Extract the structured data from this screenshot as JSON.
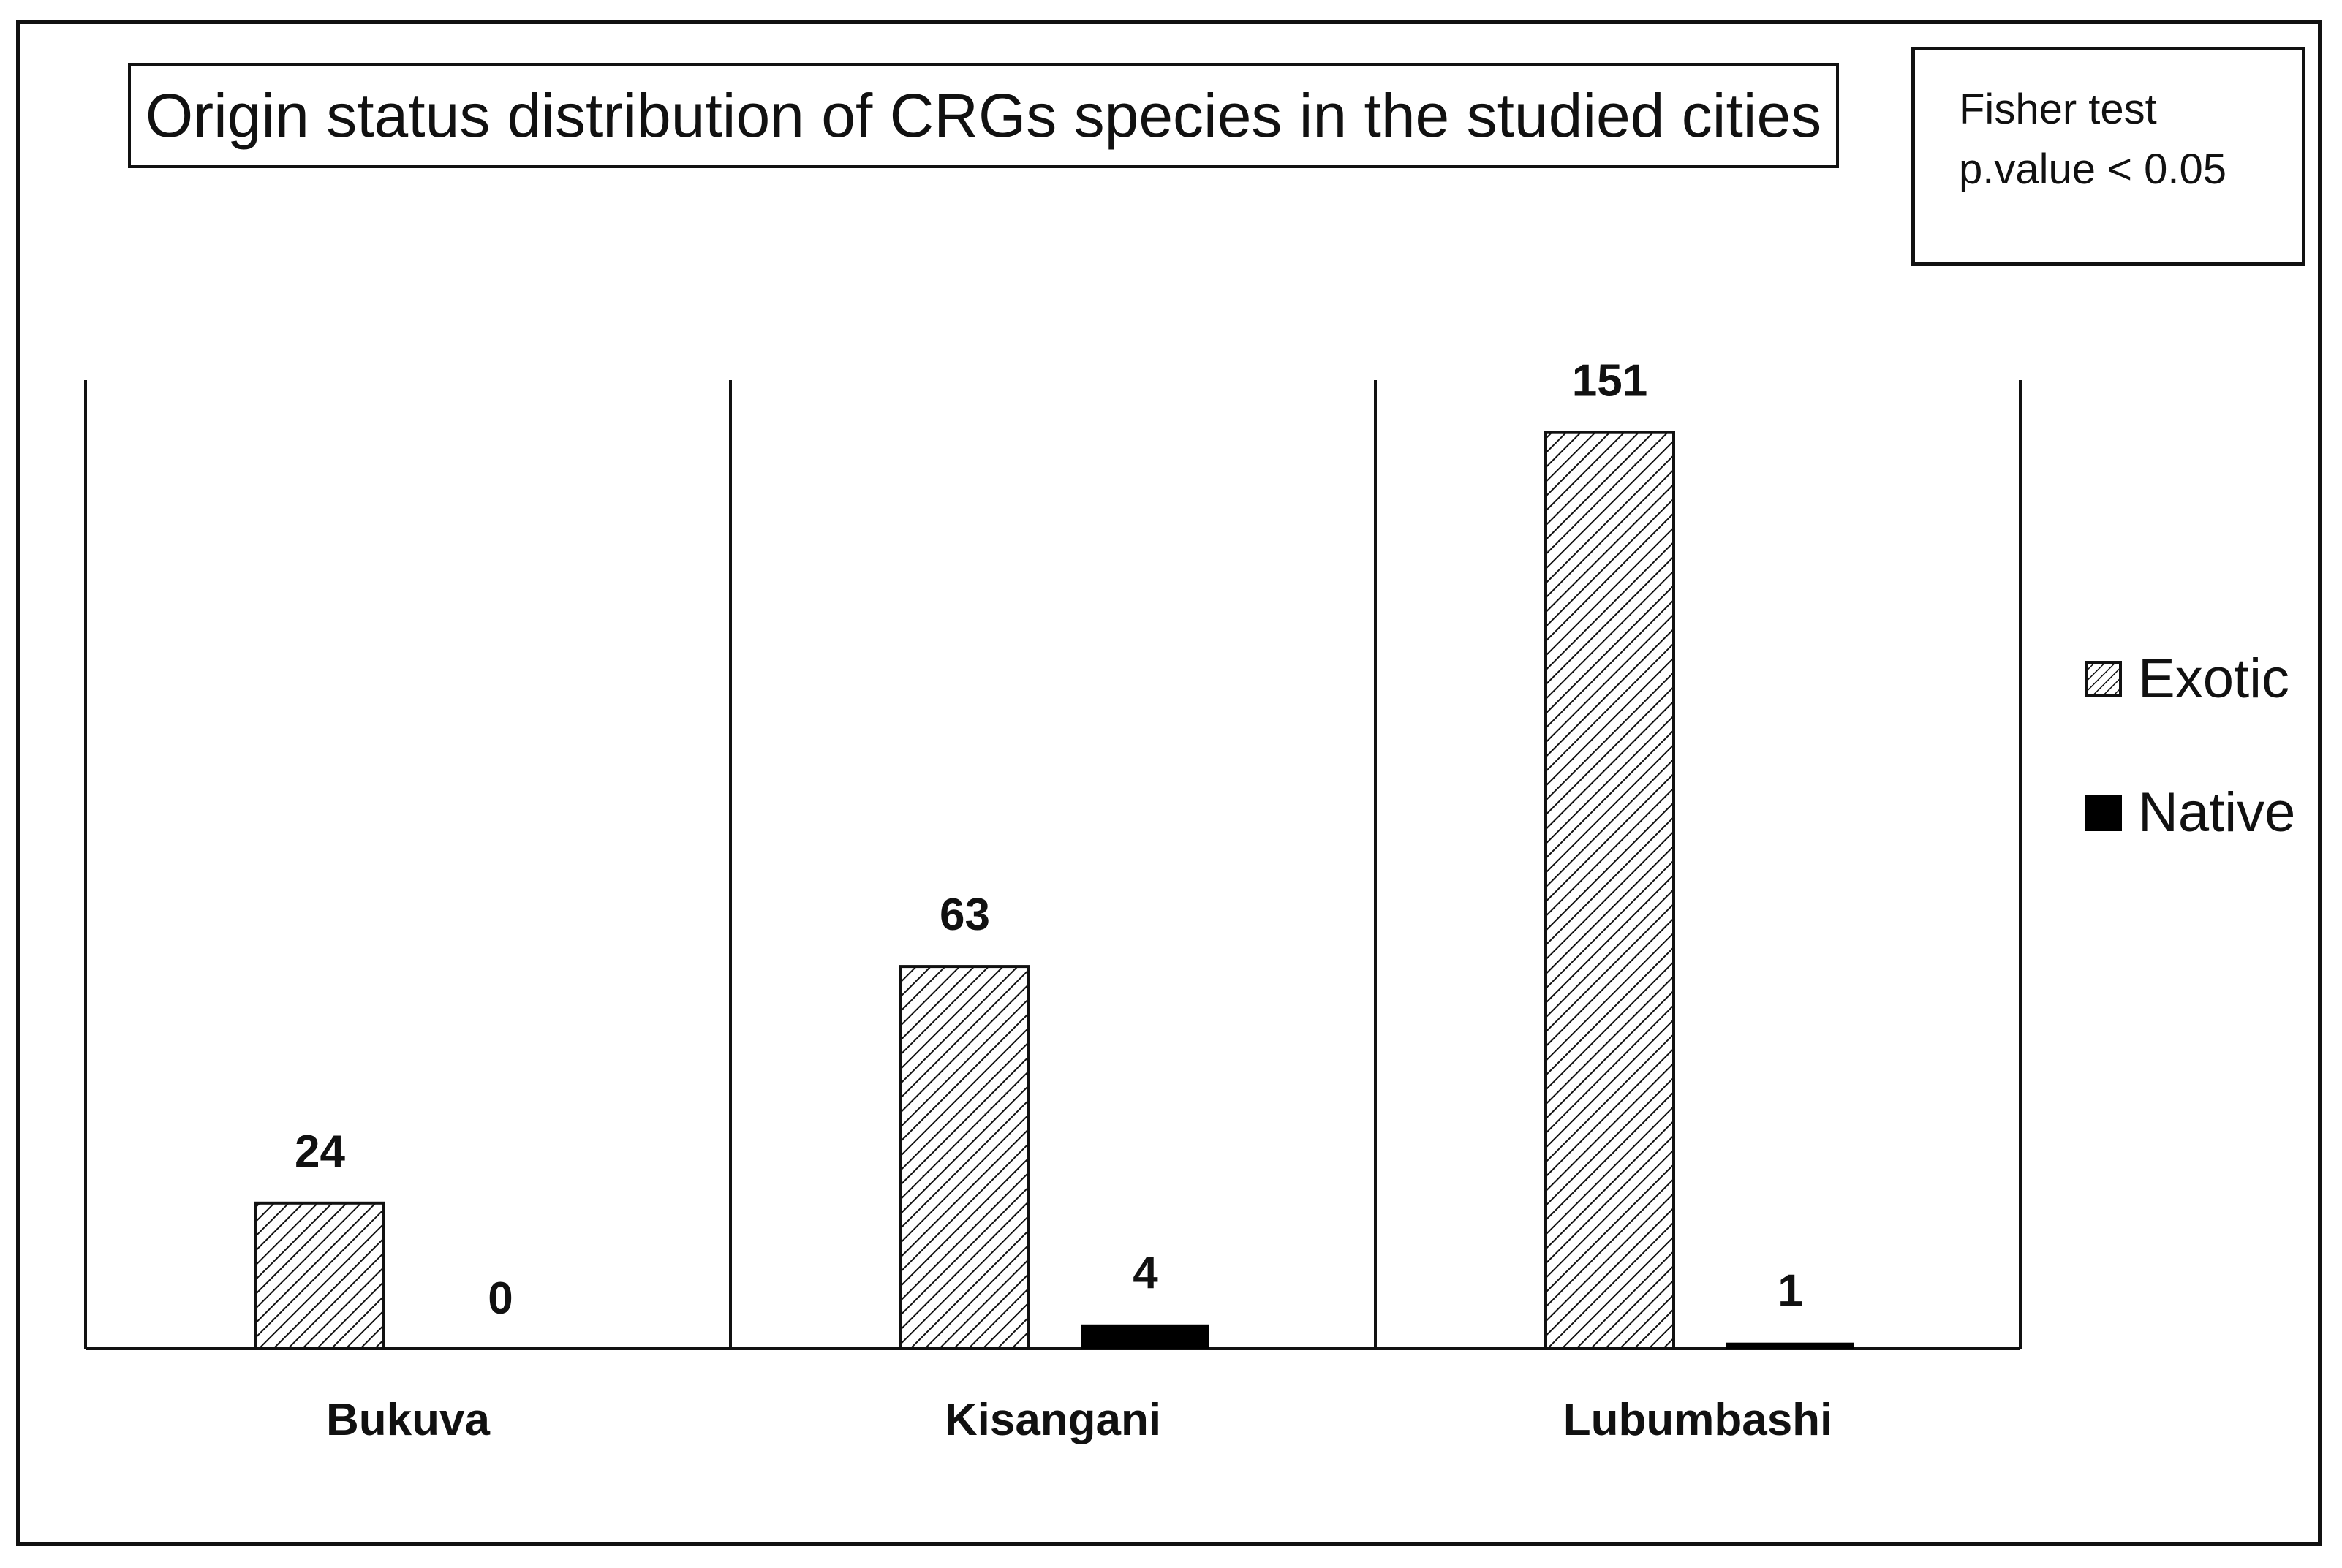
{
  "chart_data": {
    "type": "bar",
    "title": "Origin status distribution of CRGs species in the studied cities",
    "annotation": [
      "Fisher test",
      "p.value < 0.05"
    ],
    "categories": [
      "Bukuva",
      "Kisangani",
      "Lubumbashi"
    ],
    "series": [
      {
        "name": "Exotic",
        "values": [
          24,
          63,
          151
        ],
        "pattern": "hatched",
        "color": "#111111"
      },
      {
        "name": "Native",
        "values": [
          0,
          4,
          1
        ],
        "pattern": "solid",
        "color": "#000000"
      }
    ],
    "xlabel": "",
    "ylabel": "",
    "ylim": [
      0,
      160
    ],
    "grid": false,
    "data_labels": true,
    "legend": "right"
  }
}
